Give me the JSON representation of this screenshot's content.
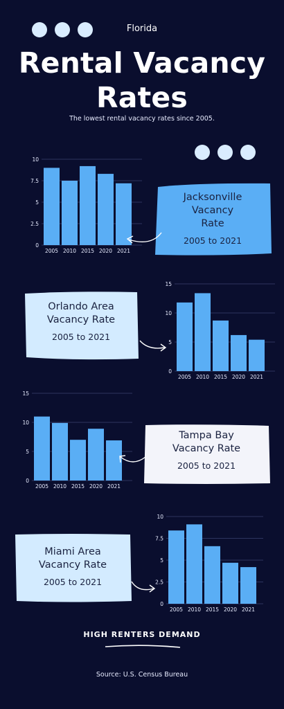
{
  "header": {
    "state": "Florida",
    "title_line1": "Rental Vacancy",
    "title_line2": "Rates",
    "subtitle": "The lowest rental vacancy rates since 2005."
  },
  "colors": {
    "background": "#0a0e2e",
    "bar": "#5aaef5",
    "card_blue": "#5aaef5",
    "card_light": "#d3ebff",
    "card_white": "#f3f4fa"
  },
  "cards": {
    "jacksonville": {
      "line1": "Jacksonville",
      "line2": "Vacancy",
      "line3": "Rate",
      "range": "2005 to 2021"
    },
    "orlando": {
      "line1": "Orlando Area",
      "line2": "Vacancy Rate",
      "range": "2005 to 2021"
    },
    "tampa": {
      "line1": "Tampa Bay",
      "line2": "Vacancy Rate",
      "range": "2005 to 2021"
    },
    "miami": {
      "line1": "Miami Area",
      "line2": "Vacancy Rate",
      "range": "2005 to 2021"
    }
  },
  "chart_data": [
    {
      "type": "bar",
      "id": "jacksonville",
      "categories": [
        "2005",
        "2010",
        "2015",
        "2020",
        "2021"
      ],
      "values": [
        9.0,
        7.5,
        9.2,
        8.3,
        7.2
      ],
      "ylim": [
        0,
        10
      ],
      "yticks": [
        "0",
        "2.5",
        "5",
        "7.5",
        "10"
      ]
    },
    {
      "type": "bar",
      "id": "orlando",
      "categories": [
        "2005",
        "2010",
        "2015",
        "2020",
        "2021"
      ],
      "values": [
        11.8,
        13.4,
        8.7,
        6.2,
        5.4
      ],
      "ylim": [
        0,
        15
      ],
      "yticks": [
        "0",
        "5",
        "10",
        "15"
      ]
    },
    {
      "type": "bar",
      "id": "tampa",
      "categories": [
        "2005",
        "2010",
        "2015",
        "2020",
        "2021"
      ],
      "values": [
        11.0,
        9.9,
        7.0,
        8.9,
        6.9
      ],
      "ylim": [
        0,
        15
      ],
      "yticks": [
        "0",
        "5",
        "10",
        "15"
      ]
    },
    {
      "type": "bar",
      "id": "miami",
      "categories": [
        "2005",
        "2010",
        "2015",
        "2020",
        "2021"
      ],
      "values": [
        8.4,
        9.1,
        6.6,
        4.7,
        4.2
      ],
      "ylim": [
        0,
        10
      ],
      "yticks": [
        "0",
        "2.5",
        "5",
        "7.5",
        "10"
      ]
    }
  ],
  "footer": {
    "tagline": "HIGH RENTERS DEMAND",
    "source": "Source: U.S. Census Bureau"
  }
}
